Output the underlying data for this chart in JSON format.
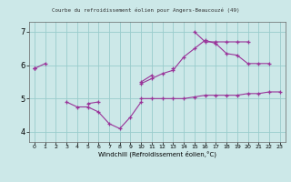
{
  "title": "Courbe du refroidissement éolien pour Angers-Beaucouzé (49)",
  "xlabel": "Windchill (Refroidissement éolien,°C)",
  "xlim": [
    -0.5,
    23.5
  ],
  "ylim": [
    3.7,
    7.3
  ],
  "yticks": [
    4,
    5,
    6,
    7
  ],
  "xticks": [
    0,
    1,
    2,
    3,
    4,
    5,
    6,
    7,
    8,
    9,
    10,
    11,
    12,
    13,
    14,
    15,
    16,
    17,
    18,
    19,
    20,
    21,
    22,
    23
  ],
  "bg_color": "#cce8e8",
  "line_color": "#993399",
  "grid_color": "#99cccc",
  "series": [
    [
      5.9,
      6.05,
      null,
      4.9,
      4.75,
      4.75,
      4.6,
      4.25,
      4.1,
      4.45,
      4.9,
      null,
      null,
      null,
      null,
      null,
      null,
      null,
      null,
      null,
      null,
      null,
      null,
      null
    ],
    [
      5.9,
      null,
      null,
      null,
      null,
      4.85,
      4.9,
      null,
      null,
      null,
      5.0,
      5.0,
      5.0,
      5.0,
      5.0,
      5.05,
      5.1,
      5.1,
      5.1,
      5.1,
      5.15,
      5.15,
      5.2,
      5.2
    ],
    [
      5.9,
      null,
      null,
      null,
      null,
      null,
      null,
      null,
      null,
      null,
      5.45,
      5.6,
      5.75,
      5.85,
      6.25,
      6.5,
      6.75,
      6.65,
      6.35,
      6.3,
      6.05,
      6.05,
      6.05,
      null
    ],
    [
      null,
      null,
      null,
      null,
      null,
      null,
      null,
      null,
      null,
      null,
      5.5,
      5.7,
      null,
      5.9,
      null,
      7.0,
      6.7,
      6.7,
      6.7,
      6.7,
      6.7,
      null,
      null,
      null
    ]
  ]
}
